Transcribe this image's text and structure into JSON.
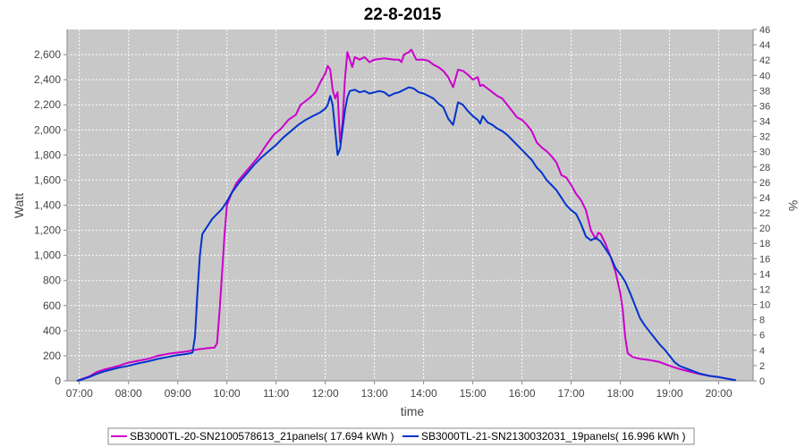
{
  "chart_data": {
    "type": "line",
    "title": "22-8-2015",
    "xlabel": "time",
    "ylabel": "Watt",
    "y2label": "%",
    "xlim": [
      6.75,
      20.7
    ],
    "ylim": [
      0,
      2800
    ],
    "y2lim": [
      0,
      46
    ],
    "x_ticks": [
      7,
      8,
      9,
      10,
      11,
      12,
      13,
      14,
      15,
      16,
      17,
      18,
      19,
      20
    ],
    "x_tick_labels": [
      "07:00",
      "08:00",
      "09:00",
      "10:00",
      "11:00",
      "12:00",
      "13:00",
      "14:00",
      "15:00",
      "16:00",
      "17:00",
      "18:00",
      "19:00",
      "20:00"
    ],
    "y_ticks": [
      0,
      200,
      400,
      600,
      800,
      1000,
      1200,
      1400,
      1600,
      1800,
      2000,
      2200,
      2400,
      2600
    ],
    "y_tick_labels": [
      "0",
      "200",
      "400",
      "600",
      "800",
      "1,000",
      "1,200",
      "1,400",
      "1,600",
      "1,800",
      "2,000",
      "2,200",
      "2,400",
      "2,600"
    ],
    "y2_ticks": [
      0,
      2,
      4,
      6,
      8,
      10,
      12,
      14,
      16,
      18,
      20,
      22,
      24,
      26,
      28,
      30,
      32,
      34,
      36,
      38,
      40,
      42,
      44,
      46
    ],
    "grid": true,
    "legend_position": "bottom",
    "plot_background": "#c8c8c8",
    "series": [
      {
        "name": "SB3000TL-20-SN2100578613_21panels( 17.694 kWh )",
        "color": "#cc00cc",
        "points": [
          [
            6.95,
            0
          ],
          [
            7.05,
            15
          ],
          [
            7.2,
            35
          ],
          [
            7.35,
            70
          ],
          [
            7.5,
            90
          ],
          [
            7.65,
            105
          ],
          [
            7.8,
            120
          ],
          [
            8.0,
            145
          ],
          [
            8.2,
            160
          ],
          [
            8.4,
            175
          ],
          [
            8.6,
            200
          ],
          [
            8.8,
            215
          ],
          [
            9.0,
            225
          ],
          [
            9.2,
            235
          ],
          [
            9.4,
            250
          ],
          [
            9.6,
            260
          ],
          [
            9.75,
            265
          ],
          [
            9.8,
            300
          ],
          [
            9.85,
            550
          ],
          [
            9.9,
            850
          ],
          [
            9.95,
            1150
          ],
          [
            10.0,
            1400
          ],
          [
            10.1,
            1500
          ],
          [
            10.2,
            1580
          ],
          [
            10.35,
            1650
          ],
          [
            10.5,
            1720
          ],
          [
            10.65,
            1790
          ],
          [
            10.8,
            1880
          ],
          [
            10.95,
            1960
          ],
          [
            11.1,
            2010
          ],
          [
            11.25,
            2080
          ],
          [
            11.4,
            2120
          ],
          [
            11.5,
            2200
          ],
          [
            11.6,
            2230
          ],
          [
            11.7,
            2260
          ],
          [
            11.8,
            2300
          ],
          [
            11.9,
            2380
          ],
          [
            12.0,
            2450
          ],
          [
            12.05,
            2510
          ],
          [
            12.1,
            2480
          ],
          [
            12.15,
            2320
          ],
          [
            12.2,
            2250
          ],
          [
            12.25,
            2300
          ],
          [
            12.3,
            1900
          ],
          [
            12.35,
            2050
          ],
          [
            12.4,
            2400
          ],
          [
            12.45,
            2620
          ],
          [
            12.5,
            2560
          ],
          [
            12.55,
            2500
          ],
          [
            12.6,
            2580
          ],
          [
            12.7,
            2560
          ],
          [
            12.8,
            2580
          ],
          [
            12.9,
            2540
          ],
          [
            13.0,
            2560
          ],
          [
            13.2,
            2570
          ],
          [
            13.4,
            2560
          ],
          [
            13.5,
            2560
          ],
          [
            13.55,
            2540
          ],
          [
            13.6,
            2600
          ],
          [
            13.7,
            2620
          ],
          [
            13.75,
            2640
          ],
          [
            13.8,
            2600
          ],
          [
            13.85,
            2560
          ],
          [
            13.9,
            2560
          ],
          [
            14.0,
            2560
          ],
          [
            14.1,
            2550
          ],
          [
            14.2,
            2520
          ],
          [
            14.3,
            2500
          ],
          [
            14.4,
            2470
          ],
          [
            14.5,
            2420
          ],
          [
            14.6,
            2340
          ],
          [
            14.7,
            2480
          ],
          [
            14.8,
            2470
          ],
          [
            14.9,
            2440
          ],
          [
            15.0,
            2400
          ],
          [
            15.1,
            2420
          ],
          [
            15.15,
            2350
          ],
          [
            15.2,
            2360
          ],
          [
            15.3,
            2330
          ],
          [
            15.4,
            2300
          ],
          [
            15.5,
            2270
          ],
          [
            15.6,
            2250
          ],
          [
            15.7,
            2200
          ],
          [
            15.8,
            2150
          ],
          [
            15.9,
            2100
          ],
          [
            16.0,
            2080
          ],
          [
            16.1,
            2040
          ],
          [
            16.2,
            1990
          ],
          [
            16.3,
            1900
          ],
          [
            16.4,
            1860
          ],
          [
            16.5,
            1830
          ],
          [
            16.6,
            1790
          ],
          [
            16.7,
            1740
          ],
          [
            16.8,
            1640
          ],
          [
            16.9,
            1620
          ],
          [
            17.0,
            1560
          ],
          [
            17.1,
            1490
          ],
          [
            17.2,
            1440
          ],
          [
            17.3,
            1360
          ],
          [
            17.4,
            1200
          ],
          [
            17.5,
            1130
          ],
          [
            17.55,
            1180
          ],
          [
            17.6,
            1170
          ],
          [
            17.7,
            1090
          ],
          [
            17.8,
            990
          ],
          [
            17.9,
            870
          ],
          [
            18.0,
            700
          ],
          [
            18.05,
            560
          ],
          [
            18.1,
            350
          ],
          [
            18.15,
            220
          ],
          [
            18.25,
            190
          ],
          [
            18.4,
            175
          ],
          [
            18.6,
            165
          ],
          [
            18.8,
            150
          ],
          [
            19.0,
            120
          ],
          [
            19.2,
            95
          ],
          [
            19.4,
            75
          ],
          [
            19.6,
            55
          ],
          [
            19.8,
            40
          ],
          [
            20.0,
            30
          ],
          [
            20.2,
            15
          ],
          [
            20.35,
            5
          ]
        ]
      },
      {
        "name": "SB3000TL-21-SN2130032031_19panels( 16.996 kWh )",
        "color": "#0033cc",
        "points": [
          [
            6.95,
            0
          ],
          [
            7.05,
            10
          ],
          [
            7.2,
            30
          ],
          [
            7.35,
            55
          ],
          [
            7.5,
            75
          ],
          [
            7.65,
            90
          ],
          [
            7.8,
            105
          ],
          [
            8.0,
            120
          ],
          [
            8.2,
            140
          ],
          [
            8.4,
            155
          ],
          [
            8.6,
            175
          ],
          [
            8.8,
            190
          ],
          [
            9.0,
            205
          ],
          [
            9.2,
            215
          ],
          [
            9.3,
            225
          ],
          [
            9.35,
            350
          ],
          [
            9.4,
            700
          ],
          [
            9.45,
            1000
          ],
          [
            9.5,
            1170
          ],
          [
            9.6,
            1230
          ],
          [
            9.7,
            1290
          ],
          [
            9.8,
            1330
          ],
          [
            9.9,
            1370
          ],
          [
            10.0,
            1430
          ],
          [
            10.1,
            1500
          ],
          [
            10.25,
            1580
          ],
          [
            10.4,
            1650
          ],
          [
            10.55,
            1720
          ],
          [
            10.7,
            1780
          ],
          [
            10.85,
            1830
          ],
          [
            11.0,
            1880
          ],
          [
            11.15,
            1940
          ],
          [
            11.3,
            1990
          ],
          [
            11.45,
            2040
          ],
          [
            11.6,
            2080
          ],
          [
            11.75,
            2110
          ],
          [
            11.9,
            2140
          ],
          [
            12.0,
            2170
          ],
          [
            12.05,
            2200
          ],
          [
            12.1,
            2270
          ],
          [
            12.15,
            2200
          ],
          [
            12.2,
            2000
          ],
          [
            12.25,
            1800
          ],
          [
            12.3,
            1850
          ],
          [
            12.35,
            2000
          ],
          [
            12.4,
            2150
          ],
          [
            12.45,
            2260
          ],
          [
            12.5,
            2310
          ],
          [
            12.6,
            2320
          ],
          [
            12.7,
            2300
          ],
          [
            12.8,
            2310
          ],
          [
            12.9,
            2290
          ],
          [
            13.0,
            2300
          ],
          [
            13.1,
            2310
          ],
          [
            13.2,
            2300
          ],
          [
            13.3,
            2270
          ],
          [
            13.4,
            2290
          ],
          [
            13.5,
            2300
          ],
          [
            13.6,
            2320
          ],
          [
            13.7,
            2340
          ],
          [
            13.8,
            2330
          ],
          [
            13.9,
            2300
          ],
          [
            14.0,
            2290
          ],
          [
            14.1,
            2270
          ],
          [
            14.2,
            2250
          ],
          [
            14.3,
            2210
          ],
          [
            14.4,
            2180
          ],
          [
            14.5,
            2090
          ],
          [
            14.6,
            2040
          ],
          [
            14.7,
            2220
          ],
          [
            14.8,
            2200
          ],
          [
            14.9,
            2150
          ],
          [
            15.0,
            2110
          ],
          [
            15.1,
            2080
          ],
          [
            15.15,
            2050
          ],
          [
            15.2,
            2110
          ],
          [
            15.3,
            2060
          ],
          [
            15.4,
            2040
          ],
          [
            15.5,
            2010
          ],
          [
            15.6,
            1990
          ],
          [
            15.7,
            1960
          ],
          [
            15.8,
            1920
          ],
          [
            15.9,
            1880
          ],
          [
            16.0,
            1840
          ],
          [
            16.1,
            1800
          ],
          [
            16.2,
            1760
          ],
          [
            16.3,
            1700
          ],
          [
            16.4,
            1660
          ],
          [
            16.5,
            1600
          ],
          [
            16.6,
            1560
          ],
          [
            16.7,
            1520
          ],
          [
            16.8,
            1460
          ],
          [
            16.9,
            1400
          ],
          [
            17.0,
            1360
          ],
          [
            17.1,
            1330
          ],
          [
            17.2,
            1250
          ],
          [
            17.3,
            1150
          ],
          [
            17.4,
            1120
          ],
          [
            17.5,
            1140
          ],
          [
            17.6,
            1110
          ],
          [
            17.7,
            1050
          ],
          [
            17.8,
            990
          ],
          [
            17.9,
            900
          ],
          [
            18.0,
            850
          ],
          [
            18.1,
            790
          ],
          [
            18.2,
            700
          ],
          [
            18.3,
            600
          ],
          [
            18.4,
            500
          ],
          [
            18.5,
            440
          ],
          [
            18.6,
            390
          ],
          [
            18.7,
            340
          ],
          [
            18.8,
            290
          ],
          [
            18.9,
            250
          ],
          [
            19.0,
            200
          ],
          [
            19.1,
            150
          ],
          [
            19.2,
            120
          ],
          [
            19.4,
            90
          ],
          [
            19.6,
            60
          ],
          [
            19.8,
            40
          ],
          [
            20.0,
            30
          ],
          [
            20.2,
            15
          ],
          [
            20.35,
            5
          ]
        ]
      }
    ]
  }
}
